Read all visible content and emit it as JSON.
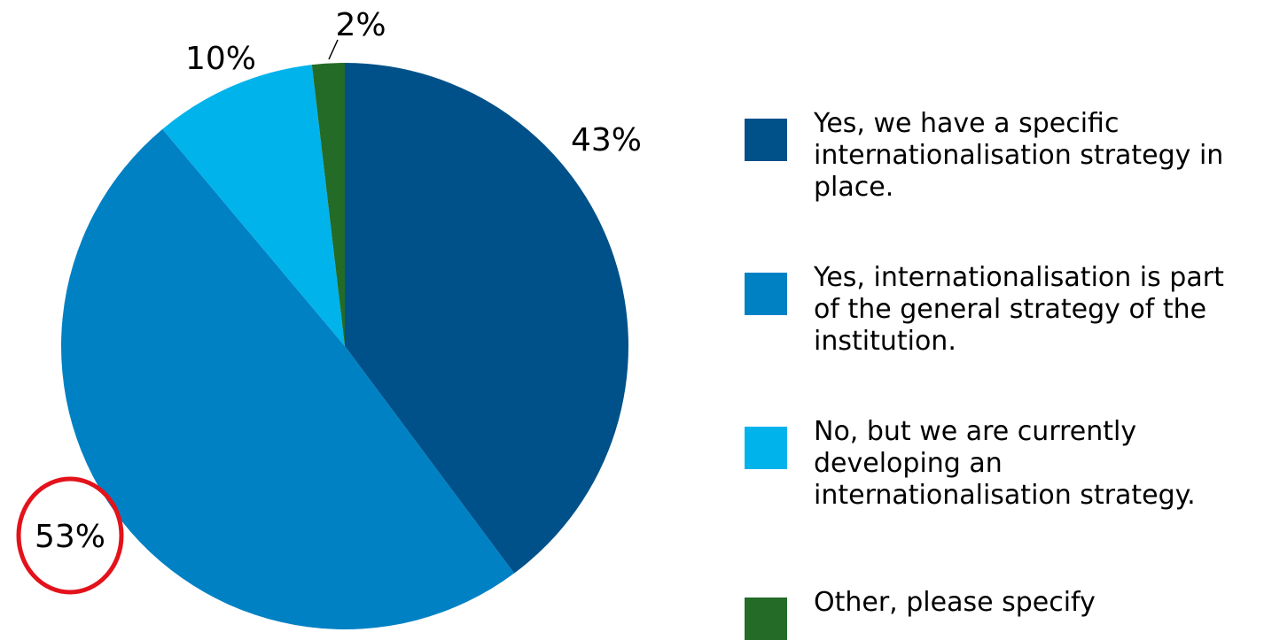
{
  "chart_data": {
    "type": "pie",
    "slices": [
      {
        "label": "Yes, we have a specific internationalisation strategy in place.",
        "value": 43,
        "value_label": "43%",
        "color": "#005189"
      },
      {
        "label": "Yes, internationalisation is part of the general strategy of the institution.",
        "value": 53,
        "value_label": "53%",
        "color": "#0081c4"
      },
      {
        "label": "No, but we are currently developing an internationalisation strategy.",
        "value": 10,
        "value_label": "10%",
        "color": "#00b3eb"
      },
      {
        "label": "Other, please specify",
        "value": 2,
        "value_label": "2%",
        "color": "#236b27"
      }
    ],
    "legend_position": "right",
    "highlighted_label": "53%",
    "highlight_color": "#e3121b"
  }
}
